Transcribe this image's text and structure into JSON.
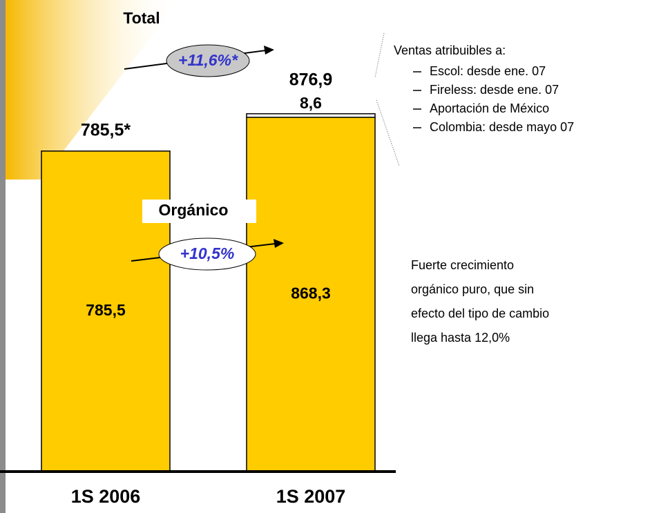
{
  "chart_data": {
    "type": "bar",
    "categories": [
      "1S 2006",
      "1S 2007"
    ],
    "series": [
      {
        "color": "#ffcc00",
        "values": [
          785.5,
          868.3
        ],
        "value_labels": [
          "785,5",
          "868,3"
        ]
      },
      {
        "color": "#ffffff",
        "values": [
          null,
          8.6
        ],
        "value_labels": [
          null,
          "8,6"
        ]
      }
    ],
    "totals": {
      "values": [
        785.5,
        876.9
      ],
      "value_labels": [
        "785,5*",
        "876,9"
      ]
    },
    "ylim": [
      0,
      1000
    ],
    "annotations": {
      "total_title": "Total",
      "total_growth": "+11,6%*",
      "organic_title": "Orgánico",
      "organic_growth": "+10,5%",
      "sales_note": {
        "title": "Ventas atribuibles a:",
        "items": [
          "Escol: desde ene. 07",
          "Fireless: desde ene. 07",
          "Aportación de México",
          "Colombia: desde mayo 07"
        ]
      },
      "organic_note": [
        "Fuerte crecimiento",
        "orgánico puro, que sin",
        "efecto del tipo de cambio",
        "llega hasta 12,0%"
      ]
    }
  }
}
